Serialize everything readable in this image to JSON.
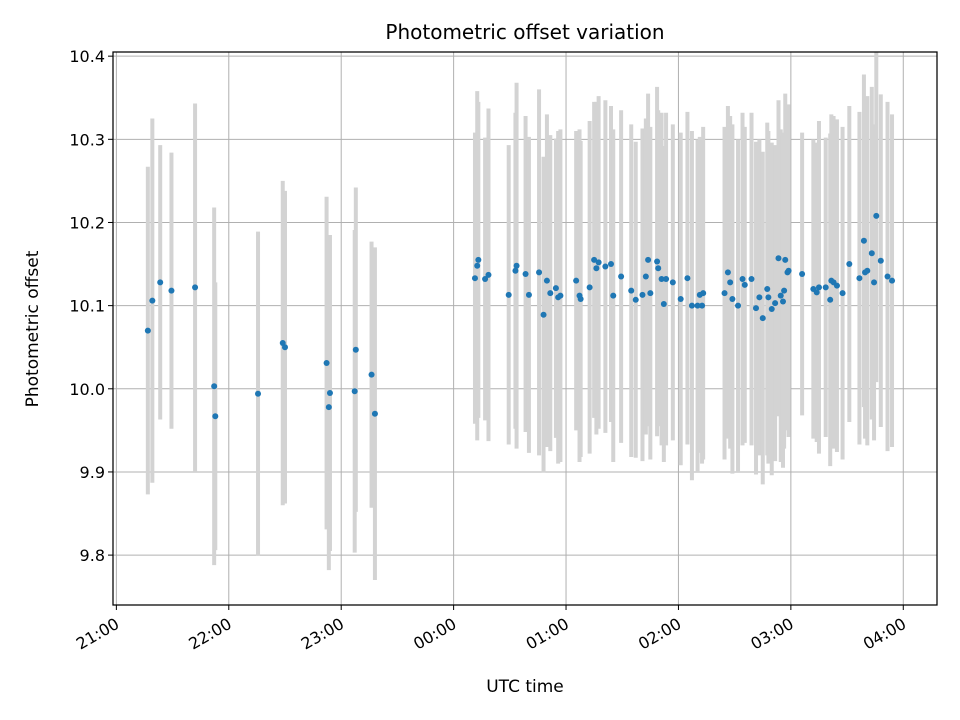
{
  "chart_data": {
    "type": "scatter",
    "title": "Photometric offset variation",
    "xlabel": "UTC time",
    "ylabel": "Photometric offset",
    "x_unit": "hours",
    "xlim": [
      -3.03,
      4.3
    ],
    "ylim": [
      9.74,
      10.405
    ],
    "x_ticks": [
      -3,
      -2,
      -1,
      0,
      1,
      2,
      3,
      4
    ],
    "x_tick_labels": [
      "21:00",
      "22:00",
      "23:00",
      "00:00",
      "01:00",
      "02:00",
      "03:00",
      "04:00"
    ],
    "y_ticks": [
      9.8,
      9.9,
      10.0,
      10.1,
      10.2,
      10.3,
      10.4
    ],
    "y_tick_labels": [
      "9.8",
      "9.9",
      "10.0",
      "10.1",
      "10.2",
      "10.3",
      "10.4"
    ],
    "grid": true,
    "colors": {
      "point": "#1f77b4",
      "errorbar": "#d3d3d3",
      "grid": "#b0b0b0"
    },
    "points": [
      [
        -2.72,
        10.07,
        0.197
      ],
      [
        -2.68,
        10.106,
        0.219
      ],
      [
        -2.61,
        10.128,
        0.165
      ],
      [
        -2.51,
        10.118,
        0.166
      ],
      [
        -2.3,
        10.122,
        0.221
      ],
      [
        -2.13,
        10.003,
        0.215
      ],
      [
        -2.12,
        9.967,
        0.161
      ],
      [
        -1.74,
        9.994,
        0.195
      ],
      [
        -1.52,
        10.055,
        0.195
      ],
      [
        -1.5,
        10.05,
        0.188
      ],
      [
        -1.13,
        10.031,
        0.2
      ],
      [
        -1.11,
        9.978,
        0.196
      ],
      [
        -1.1,
        9.995,
        0.19
      ],
      [
        -0.88,
        9.997,
        0.194
      ],
      [
        -0.87,
        10.047,
        0.195
      ],
      [
        -0.73,
        10.017,
        0.16
      ],
      [
        -0.7,
        9.97,
        0.2
      ],
      [
        0.19,
        10.133,
        0.175
      ],
      [
        0.21,
        10.148,
        0.21
      ],
      [
        0.22,
        10.155,
        0.19
      ],
      [
        0.28,
        10.132,
        0.17
      ],
      [
        0.31,
        10.137,
        0.2
      ],
      [
        0.49,
        10.113,
        0.18
      ],
      [
        0.55,
        10.142,
        0.19
      ],
      [
        0.56,
        10.148,
        0.22
      ],
      [
        0.64,
        10.138,
        0.19
      ],
      [
        0.67,
        10.113,
        0.19
      ],
      [
        0.76,
        10.14,
        0.22
      ],
      [
        0.8,
        10.089,
        0.19
      ],
      [
        0.83,
        10.13,
        0.2
      ],
      [
        0.86,
        10.115,
        0.19
      ],
      [
        0.91,
        10.121,
        0.18
      ],
      [
        0.93,
        10.11,
        0.2
      ],
      [
        0.95,
        10.112,
        0.2
      ],
      [
        1.09,
        10.13,
        0.18
      ],
      [
        1.12,
        10.112,
        0.2
      ],
      [
        1.13,
        10.108,
        0.19
      ],
      [
        1.21,
        10.122,
        0.2
      ],
      [
        1.25,
        10.155,
        0.19
      ],
      [
        1.27,
        10.145,
        0.2
      ],
      [
        1.29,
        10.152,
        0.2
      ],
      [
        1.35,
        10.147,
        0.2
      ],
      [
        1.4,
        10.15,
        0.19
      ],
      [
        1.42,
        10.112,
        0.2
      ],
      [
        1.49,
        10.135,
        0.2
      ],
      [
        1.58,
        10.118,
        0.2
      ],
      [
        1.62,
        10.107,
        0.19
      ],
      [
        1.68,
        10.113,
        0.2
      ],
      [
        1.71,
        10.135,
        0.19
      ],
      [
        1.73,
        10.155,
        0.2
      ],
      [
        1.75,
        10.115,
        0.2
      ],
      [
        1.81,
        10.153,
        0.21
      ],
      [
        1.82,
        10.145,
        0.19
      ],
      [
        1.85,
        10.132,
        0.2
      ],
      [
        1.87,
        10.102,
        0.19
      ],
      [
        1.89,
        10.132,
        0.2
      ],
      [
        1.95,
        10.128,
        0.19
      ],
      [
        2.02,
        10.108,
        0.2
      ],
      [
        2.08,
        10.133,
        0.2
      ],
      [
        2.12,
        10.1,
        0.21
      ],
      [
        2.17,
        10.1,
        0.2
      ],
      [
        2.19,
        10.113,
        0.19
      ],
      [
        2.22,
        10.115,
        0.2
      ],
      [
        2.21,
        10.1,
        0.19
      ],
      [
        2.41,
        10.115,
        0.2
      ],
      [
        2.44,
        10.14,
        0.2
      ],
      [
        2.46,
        10.128,
        0.2
      ],
      [
        2.48,
        10.108,
        0.21
      ],
      [
        2.53,
        10.1,
        0.2
      ],
      [
        2.57,
        10.132,
        0.2
      ],
      [
        2.59,
        10.125,
        0.19
      ],
      [
        2.65,
        10.132,
        0.2
      ],
      [
        2.69,
        10.097,
        0.2
      ],
      [
        2.72,
        10.11,
        0.19
      ],
      [
        2.75,
        10.085,
        0.2
      ],
      [
        2.79,
        10.12,
        0.2
      ],
      [
        2.8,
        10.11,
        0.2
      ],
      [
        2.83,
        10.096,
        0.2
      ],
      [
        2.86,
        10.103,
        0.19
      ],
      [
        2.89,
        10.157,
        0.19
      ],
      [
        2.91,
        10.112,
        0.2
      ],
      [
        2.93,
        10.105,
        0.2
      ],
      [
        2.94,
        10.118,
        0.19
      ],
      [
        2.95,
        10.155,
        0.2
      ],
      [
        2.97,
        10.14,
        0.19
      ],
      [
        2.98,
        10.142,
        0.2
      ],
      [
        3.1,
        10.138,
        0.17
      ],
      [
        3.2,
        10.12,
        0.18
      ],
      [
        3.23,
        10.116,
        0.18
      ],
      [
        3.25,
        10.122,
        0.2
      ],
      [
        3.31,
        10.122,
        0.18
      ],
      [
        3.35,
        10.107,
        0.2
      ],
      [
        3.36,
        10.13,
        0.2
      ],
      [
        3.38,
        10.128,
        0.2
      ],
      [
        3.41,
        10.124,
        0.2
      ],
      [
        3.46,
        10.115,
        0.2
      ],
      [
        3.52,
        10.15,
        0.19
      ],
      [
        3.61,
        10.133,
        0.2
      ],
      [
        3.65,
        10.178,
        0.2
      ],
      [
        3.66,
        10.14,
        0.2
      ],
      [
        3.68,
        10.142,
        0.21
      ],
      [
        3.72,
        10.163,
        0.2
      ],
      [
        3.76,
        10.208,
        0.2
      ],
      [
        3.8,
        10.154,
        0.2
      ],
      [
        3.74,
        10.128,
        0.19
      ],
      [
        3.86,
        10.135,
        0.21
      ],
      [
        3.9,
        10.13,
        0.2
      ]
    ]
  }
}
